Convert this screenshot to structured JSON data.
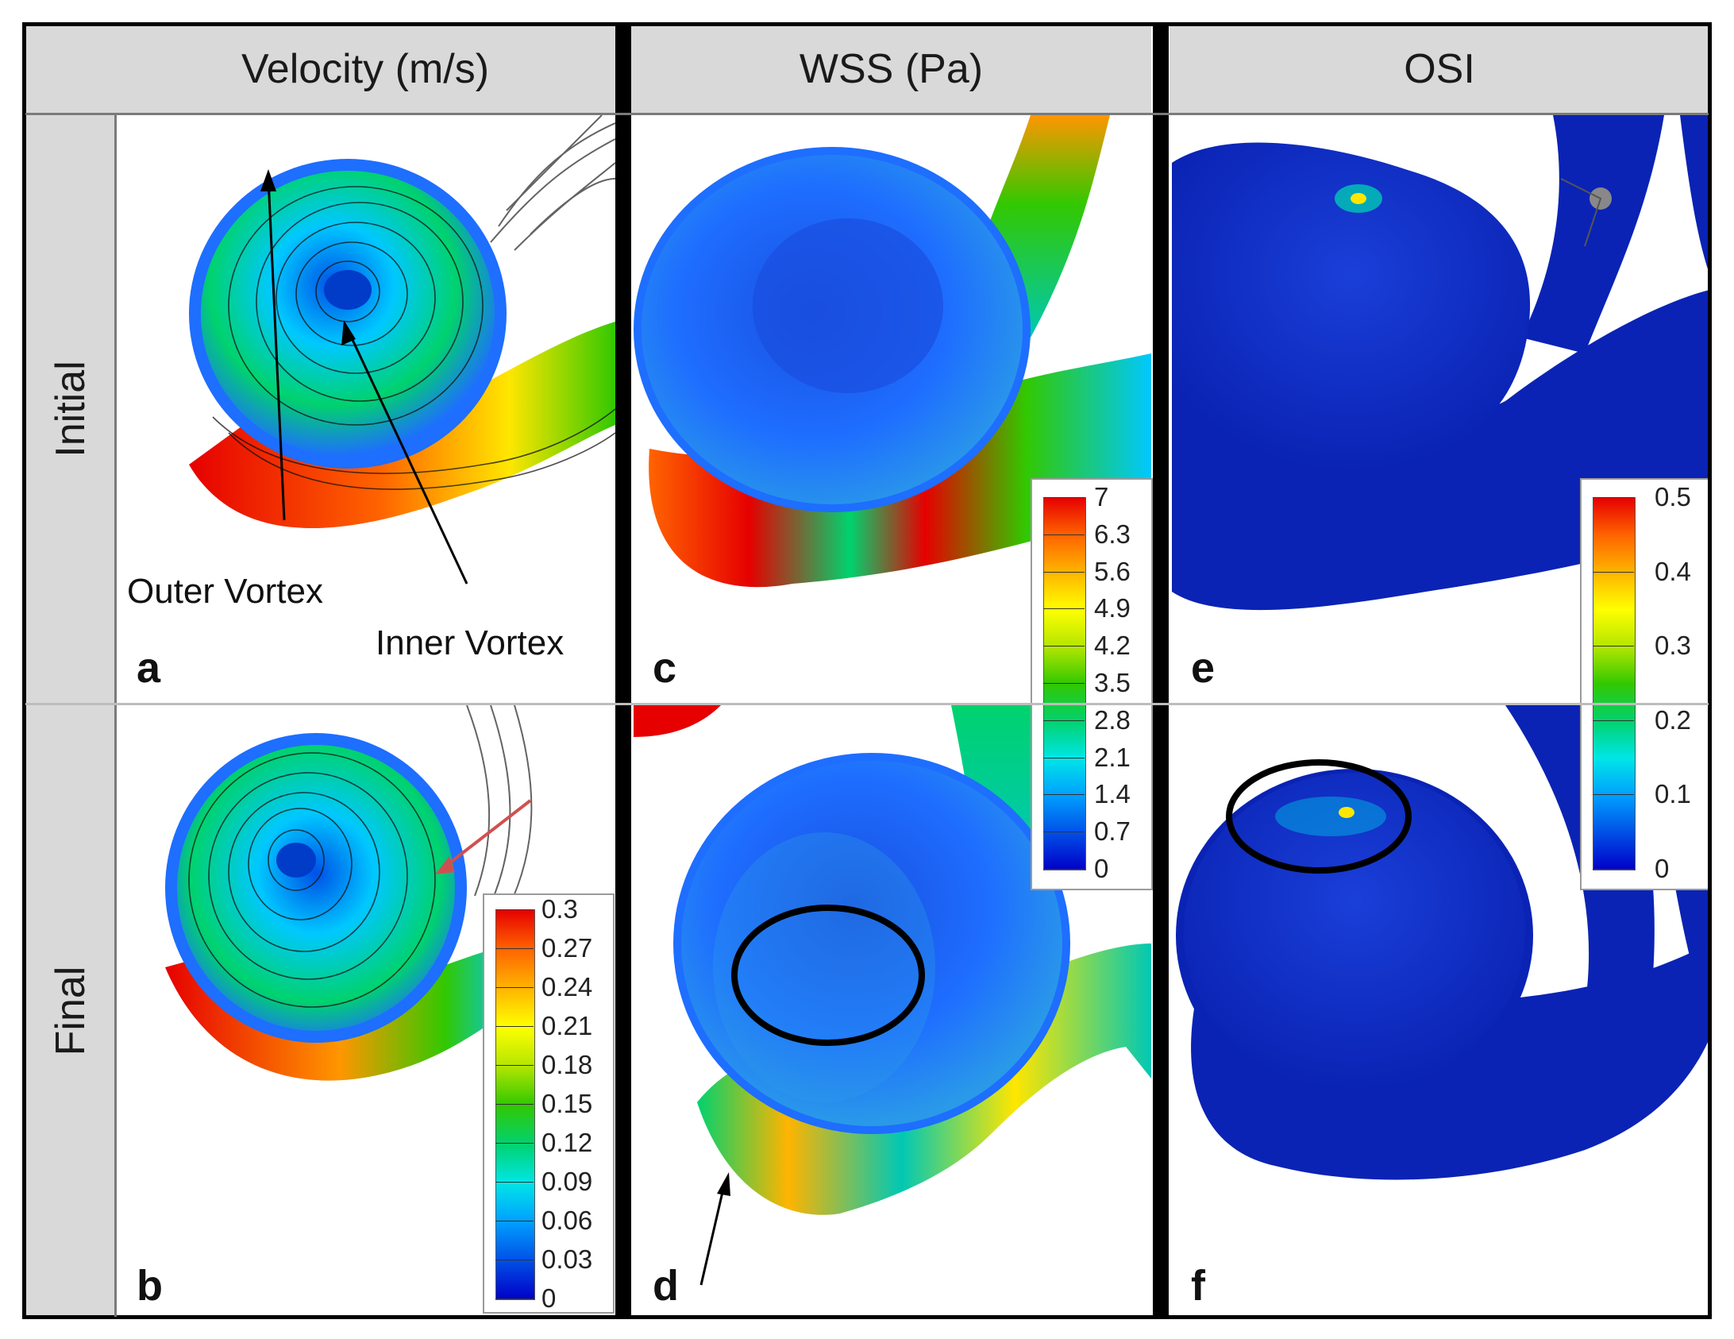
{
  "columns": [
    {
      "title": "Velocity (m/s)"
    },
    {
      "title": "WSS (Pa)"
    },
    {
      "title": "OSI"
    }
  ],
  "rows": [
    {
      "title": "Initial"
    },
    {
      "title": "Final"
    }
  ],
  "panels": {
    "a": {
      "label": "a",
      "annotations": {
        "outer": "Outer Vortex",
        "inner": "Inner Vortex"
      }
    },
    "b": {
      "label": "b"
    },
    "c": {
      "label": "c"
    },
    "d": {
      "label": "d"
    },
    "e": {
      "label": "e"
    },
    "f": {
      "label": "f"
    }
  },
  "legends": {
    "velocity": {
      "ticks": [
        "0.3",
        "0.27",
        "0.24",
        "0.21",
        "0.18",
        "0.15",
        "0.12",
        "0.09",
        "0.06",
        "0.03",
        "0"
      ],
      "max": 0.3,
      "min": 0
    },
    "wss": {
      "ticks": [
        "7",
        "6.3",
        "5.6",
        "4.9",
        "4.2",
        "3.5",
        "2.8",
        "2.1",
        "1.4",
        "0.7",
        "0"
      ],
      "max": 7,
      "min": 0
    },
    "osi": {
      "ticks": [
        "0.5",
        "0.4",
        "0.3",
        "0.2",
        "0.1",
        "0"
      ],
      "max": 0.5,
      "min": 0
    }
  },
  "colormap": [
    "#0000c8",
    "#0050e6",
    "#00a0ff",
    "#00e6e6",
    "#00d26e",
    "#32c800",
    "#b4e600",
    "#ffff00",
    "#ffb400",
    "#ff6400",
    "#e60000"
  ]
}
